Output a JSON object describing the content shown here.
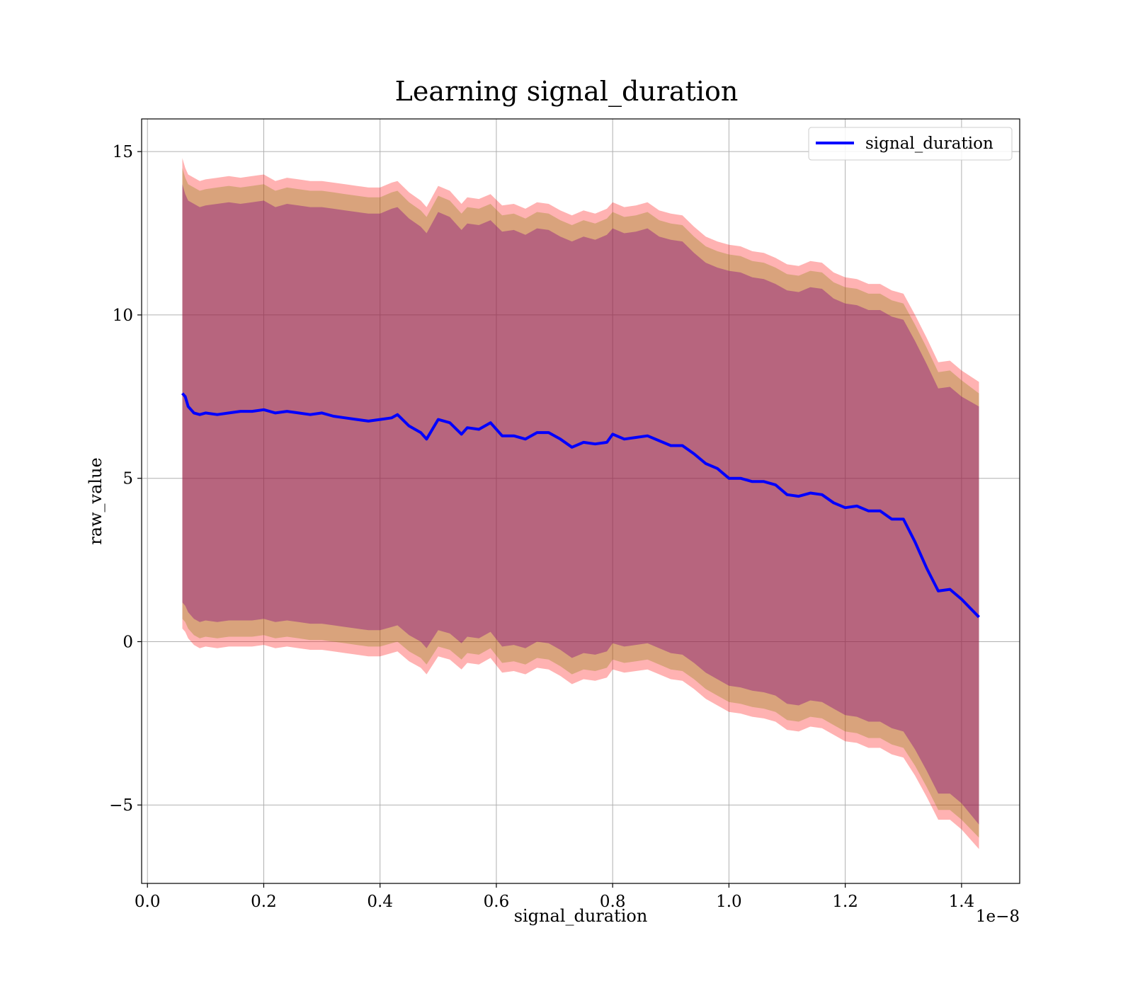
{
  "chart_data": {
    "type": "line",
    "title": "Learning signal_duration",
    "xlabel": "signal_duration",
    "ylabel": "raw_value",
    "x_offset_label": "1e−8",
    "xlim": [
      -1e-10,
      1.5e-08
    ],
    "ylim": [
      -7.4,
      16
    ],
    "xticks": [
      0.0,
      2e-09,
      4e-09,
      6e-09,
      8e-09,
      1e-08,
      1.2e-08,
      1.4e-08
    ],
    "xtick_labels": [
      "0.0",
      "0.2",
      "0.4",
      "0.6",
      "0.8",
      "1.0",
      "1.2",
      "1.4"
    ],
    "yticks": [
      -5,
      0,
      5,
      10,
      15
    ],
    "ytick_labels": [
      "−5",
      "0",
      "5",
      "10",
      "15"
    ],
    "grid": true,
    "legend": {
      "position": "top-right",
      "entries": [
        "signal_duration"
      ]
    },
    "colors": {
      "line": "#0000ff",
      "band_outer": "#ff0000",
      "band_mid": "#808000",
      "band_inner": "#800080"
    },
    "series": [
      {
        "name": "signal_duration",
        "x": [
          6e-10,
          6.5e-10,
          7e-10,
          8e-10,
          9e-10,
          1e-09,
          1.2e-09,
          1.4e-09,
          1.6e-09,
          1.8e-09,
          2e-09,
          2.2e-09,
          2.4e-09,
          2.6e-09,
          2.8e-09,
          3e-09,
          3.2e-09,
          3.4e-09,
          3.6e-09,
          3.8e-09,
          4e-09,
          4.2e-09,
          4.3e-09,
          4.5e-09,
          4.7e-09,
          4.8e-09,
          5e-09,
          5.2e-09,
          5.4e-09,
          5.5e-09,
          5.7e-09,
          5.9e-09,
          6.1e-09,
          6.3e-09,
          6.5e-09,
          6.7e-09,
          6.9e-09,
          7.1e-09,
          7.3e-09,
          7.5e-09,
          7.7e-09,
          7.9e-09,
          8e-09,
          8.2e-09,
          8.4e-09,
          8.6e-09,
          8.8e-09,
          9e-09,
          9.2e-09,
          9.4e-09,
          9.6e-09,
          9.8e-09,
          1e-08,
          1.02e-08,
          1.04e-08,
          1.06e-08,
          1.08e-08,
          1.1e-08,
          1.12e-08,
          1.14e-08,
          1.16e-08,
          1.18e-08,
          1.2e-08,
          1.22e-08,
          1.24e-08,
          1.26e-08,
          1.28e-08,
          1.3e-08,
          1.32e-08,
          1.34e-08,
          1.36e-08,
          1.38e-08,
          1.4e-08,
          1.43e-08
        ],
        "y": [
          7.6,
          7.5,
          7.2,
          7.0,
          6.95,
          7.0,
          6.95,
          7.0,
          7.05,
          7.05,
          7.1,
          7.0,
          7.05,
          7.0,
          6.95,
          7.0,
          6.9,
          6.85,
          6.8,
          6.75,
          6.8,
          6.85,
          6.95,
          6.6,
          6.4,
          6.2,
          6.8,
          6.7,
          6.35,
          6.55,
          6.5,
          6.7,
          6.3,
          6.3,
          6.2,
          6.4,
          6.4,
          6.2,
          5.95,
          6.1,
          6.05,
          6.1,
          6.35,
          6.2,
          6.25,
          6.3,
          6.15,
          6.0,
          6.0,
          5.75,
          5.45,
          5.3,
          5.0,
          5.0,
          4.9,
          4.9,
          4.8,
          4.5,
          4.45,
          4.55,
          4.5,
          4.25,
          4.1,
          4.15,
          4.0,
          4.0,
          3.75,
          3.75,
          3.05,
          2.25,
          1.55,
          1.6,
          1.3,
          0.75
        ],
        "band_outer_upper": [
          14.8,
          14.5,
          14.3,
          14.2,
          14.1,
          14.15,
          14.2,
          14.25,
          14.2,
          14.25,
          14.3,
          14.1,
          14.2,
          14.15,
          14.1,
          14.1,
          14.05,
          14.0,
          13.95,
          13.9,
          13.9,
          14.05,
          14.1,
          13.75,
          13.5,
          13.3,
          13.95,
          13.8,
          13.4,
          13.6,
          13.55,
          13.7,
          13.35,
          13.4,
          13.25,
          13.45,
          13.4,
          13.2,
          13.05,
          13.2,
          13.1,
          13.25,
          13.45,
          13.3,
          13.35,
          13.45,
          13.2,
          13.1,
          13.05,
          12.7,
          12.4,
          12.25,
          12.15,
          12.1,
          11.95,
          11.9,
          11.75,
          11.55,
          11.5,
          11.65,
          11.6,
          11.3,
          11.15,
          11.1,
          10.95,
          10.95,
          10.75,
          10.65,
          10.0,
          9.3,
          8.55,
          8.6,
          8.3,
          7.95
        ],
        "band_outer_lower": [
          0.4,
          0.3,
          0.1,
          -0.1,
          -0.2,
          -0.15,
          -0.2,
          -0.15,
          -0.15,
          -0.15,
          -0.1,
          -0.2,
          -0.15,
          -0.2,
          -0.25,
          -0.25,
          -0.3,
          -0.35,
          -0.4,
          -0.45,
          -0.45,
          -0.35,
          -0.3,
          -0.6,
          -0.8,
          -1.0,
          -0.45,
          -0.55,
          -0.85,
          -0.65,
          -0.7,
          -0.5,
          -0.95,
          -0.9,
          -1.0,
          -0.8,
          -0.85,
          -1.05,
          -1.3,
          -1.15,
          -1.2,
          -1.1,
          -0.85,
          -0.95,
          -0.9,
          -0.85,
          -1.0,
          -1.15,
          -1.2,
          -1.45,
          -1.75,
          -1.95,
          -2.15,
          -2.2,
          -2.3,
          -2.35,
          -2.45,
          -2.7,
          -2.75,
          -2.6,
          -2.65,
          -2.85,
          -3.05,
          -3.1,
          -3.25,
          -3.25,
          -3.45,
          -3.55,
          -4.1,
          -4.75,
          -5.45,
          -5.45,
          -5.75,
          -6.35
        ],
        "band_mid_upper": [
          14.5,
          14.2,
          14.0,
          13.9,
          13.8,
          13.85,
          13.9,
          13.95,
          13.9,
          13.95,
          14.0,
          13.8,
          13.9,
          13.85,
          13.8,
          13.8,
          13.75,
          13.7,
          13.65,
          13.6,
          13.6,
          13.75,
          13.8,
          13.45,
          13.2,
          13.0,
          13.65,
          13.5,
          13.1,
          13.3,
          13.25,
          13.4,
          13.05,
          13.1,
          12.95,
          13.15,
          13.1,
          12.9,
          12.75,
          12.9,
          12.8,
          12.95,
          13.15,
          13.0,
          13.05,
          13.15,
          12.9,
          12.8,
          12.75,
          12.4,
          12.1,
          11.95,
          11.85,
          11.8,
          11.65,
          11.6,
          11.45,
          11.25,
          11.2,
          11.35,
          11.3,
          11.0,
          10.85,
          10.8,
          10.65,
          10.65,
          10.45,
          10.35,
          9.7,
          9.0,
          8.25,
          8.3,
          8.0,
          7.6
        ],
        "band_mid_lower": [
          0.7,
          0.6,
          0.4,
          0.2,
          0.1,
          0.15,
          0.1,
          0.15,
          0.15,
          0.15,
          0.2,
          0.1,
          0.15,
          0.1,
          0.05,
          0.05,
          0.0,
          -0.05,
          -0.1,
          -0.15,
          -0.15,
          -0.05,
          0.0,
          -0.3,
          -0.5,
          -0.7,
          -0.15,
          -0.25,
          -0.55,
          -0.35,
          -0.4,
          -0.2,
          -0.65,
          -0.6,
          -0.7,
          -0.5,
          -0.55,
          -0.75,
          -1.0,
          -0.85,
          -0.9,
          -0.8,
          -0.55,
          -0.65,
          -0.6,
          -0.55,
          -0.7,
          -0.85,
          -0.9,
          -1.15,
          -1.45,
          -1.65,
          -1.85,
          -1.9,
          -2.0,
          -2.05,
          -2.15,
          -2.4,
          -2.45,
          -2.3,
          -2.35,
          -2.55,
          -2.75,
          -2.8,
          -2.95,
          -2.95,
          -3.15,
          -3.25,
          -3.8,
          -4.45,
          -5.15,
          -5.15,
          -5.45,
          -6.0
        ],
        "band_inner_upper": [
          14.0,
          13.7,
          13.5,
          13.4,
          13.3,
          13.35,
          13.4,
          13.45,
          13.4,
          13.45,
          13.5,
          13.3,
          13.4,
          13.35,
          13.3,
          13.3,
          13.25,
          13.2,
          13.15,
          13.1,
          13.1,
          13.25,
          13.3,
          12.95,
          12.7,
          12.5,
          13.15,
          13.0,
          12.6,
          12.8,
          12.75,
          12.9,
          12.55,
          12.6,
          12.45,
          12.65,
          12.6,
          12.4,
          12.25,
          12.4,
          12.3,
          12.45,
          12.65,
          12.5,
          12.55,
          12.65,
          12.4,
          12.3,
          12.25,
          11.9,
          11.6,
          11.45,
          11.35,
          11.3,
          11.15,
          11.1,
          10.95,
          10.75,
          10.7,
          10.85,
          10.8,
          10.5,
          10.35,
          10.3,
          10.15,
          10.15,
          9.95,
          9.85,
          9.2,
          8.5,
          7.75,
          7.8,
          7.5,
          7.2
        ],
        "band_inner_lower": [
          1.2,
          1.1,
          0.9,
          0.7,
          0.6,
          0.65,
          0.6,
          0.65,
          0.65,
          0.65,
          0.7,
          0.6,
          0.65,
          0.6,
          0.55,
          0.55,
          0.5,
          0.45,
          0.4,
          0.35,
          0.35,
          0.45,
          0.5,
          0.2,
          0.0,
          -0.2,
          0.35,
          0.25,
          -0.05,
          0.15,
          0.1,
          0.3,
          -0.15,
          -0.1,
          -0.2,
          0.0,
          -0.05,
          -0.25,
          -0.5,
          -0.35,
          -0.4,
          -0.3,
          -0.05,
          -0.15,
          -0.1,
          -0.05,
          -0.2,
          -0.35,
          -0.4,
          -0.65,
          -0.95,
          -1.15,
          -1.35,
          -1.4,
          -1.5,
          -1.55,
          -1.65,
          -1.9,
          -1.95,
          -1.8,
          -1.85,
          -2.05,
          -2.25,
          -2.3,
          -2.45,
          -2.45,
          -2.65,
          -2.75,
          -3.3,
          -3.95,
          -4.65,
          -4.65,
          -4.95,
          -5.6
        ]
      }
    ]
  }
}
